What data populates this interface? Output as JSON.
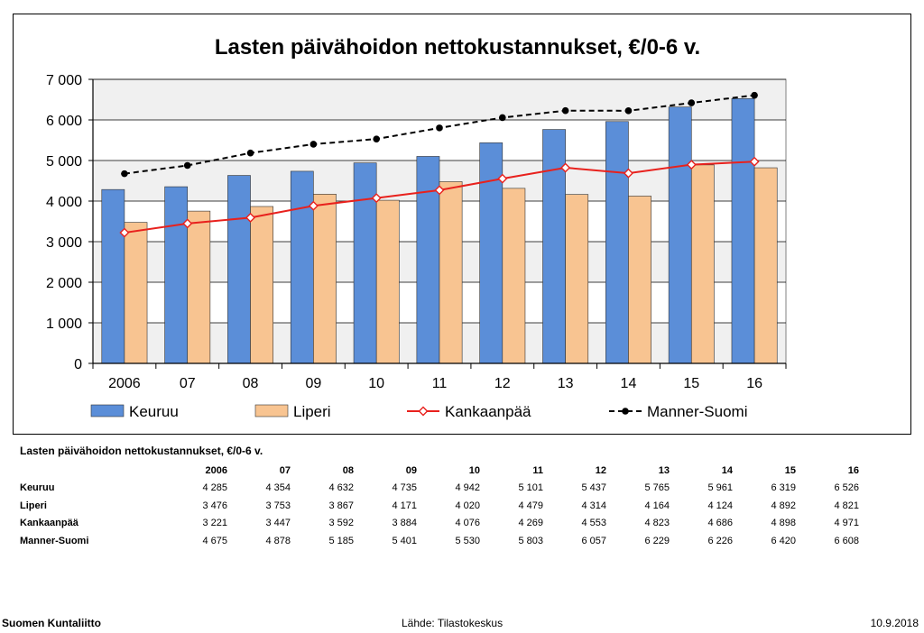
{
  "chart_data": {
    "type": "bar",
    "title": "Lasten päivähoidon nettokustannukset, €/0-6 v.",
    "categories": [
      "2006",
      "07",
      "08",
      "09",
      "10",
      "11",
      "12",
      "13",
      "14",
      "15",
      "16"
    ],
    "series": [
      {
        "name": "Keuruu",
        "kind": "bar",
        "color": "#5B8ED8",
        "values": [
          4285,
          4354,
          4632,
          4735,
          4942,
          5101,
          5437,
          5765,
          5961,
          6319,
          6526
        ]
      },
      {
        "name": "Liperi",
        "kind": "bar",
        "color": "#F8C491",
        "values": [
          3476,
          3753,
          3867,
          4171,
          4020,
          4479,
          4314,
          4164,
          4124,
          4892,
          4821
        ]
      },
      {
        "name": "Kankaanpää",
        "kind": "line",
        "color": "#E8211D",
        "marker": "diamond",
        "values": [
          3221,
          3447,
          3592,
          3884,
          4076,
          4269,
          4553,
          4823,
          4686,
          4898,
          4971
        ]
      },
      {
        "name": "Manner-Suomi",
        "kind": "dashed-line",
        "color": "#000000",
        "marker": "circle",
        "values": [
          4675,
          4878,
          5185,
          5401,
          5530,
          5803,
          6057,
          6229,
          6226,
          6420,
          6608
        ]
      }
    ],
    "ylim": [
      0,
      7000
    ],
    "yticks": [
      0,
      1000,
      2000,
      3000,
      4000,
      5000,
      6000,
      7000
    ],
    "ytick_labels": [
      "0",
      "1 000",
      "2 000",
      "3 000",
      "4 000",
      "5 000",
      "6 000",
      "7 000"
    ],
    "grid": true,
    "legend_position": "bottom"
  },
  "table": {
    "title": "Lasten päivähoidon nettokustannukset, €/0-6 v.",
    "headers": [
      "2006",
      "07",
      "08",
      "09",
      "10",
      "11",
      "12",
      "13",
      "14",
      "15",
      "16"
    ],
    "rows": [
      {
        "label": "Keuruu",
        "values": [
          "4 285",
          "4 354",
          "4 632",
          "4 735",
          "4 942",
          "5 101",
          "5 437",
          "5 765",
          "5 961",
          "6 319",
          "6 526"
        ]
      },
      {
        "label": "Liperi",
        "values": [
          "3 476",
          "3 753",
          "3 867",
          "4 171",
          "4 020",
          "4 479",
          "4 314",
          "4 164",
          "4 124",
          "4 892",
          "4 821"
        ]
      },
      {
        "label": "Kankaanpää",
        "values": [
          "3 221",
          "3 447",
          "3 592",
          "3 884",
          "4 076",
          "4 269",
          "4 553",
          "4 823",
          "4 686",
          "4 898",
          "4 971"
        ]
      },
      {
        "label": "Manner-Suomi",
        "values": [
          "4 675",
          "4 878",
          "5 185",
          "5 401",
          "5 530",
          "5 803",
          "6 057",
          "6 229",
          "6 226",
          "6 420",
          "6 608"
        ]
      }
    ]
  },
  "footer": {
    "left": "Suomen Kuntaliitto",
    "center": "Lähde: Tilastokeskus",
    "right": "10.9.2018"
  }
}
